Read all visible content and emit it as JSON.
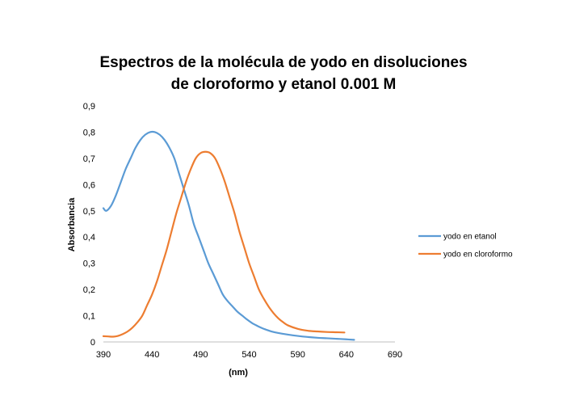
{
  "chart_data": {
    "type": "line",
    "title_line1": "Espectros de la molécula de yodo en disoluciones",
    "title_line2": "de cloroformo y etanol  0.001 M",
    "xlabel": "(nm)",
    "ylabel": "Absorbancia",
    "xlim": [
      390,
      690
    ],
    "ylim": [
      0,
      0.9
    ],
    "x_ticks": [
      390,
      440,
      490,
      540,
      590,
      640,
      690
    ],
    "y_ticks": [
      0,
      0.1,
      0.2,
      0.3,
      0.4,
      0.5,
      0.6,
      0.7,
      0.8,
      0.9
    ],
    "y_tick_labels": [
      "0",
      "0,1",
      "0,2",
      "0,3",
      "0,4",
      "0,5",
      "0,6",
      "0,7",
      "0,8",
      "0,9"
    ],
    "grid": false,
    "legend_position": "right",
    "series": [
      {
        "name": "yodo en etanol",
        "color": "#5B9BD5",
        "points": [
          [
            390,
            0.51
          ],
          [
            393,
            0.5
          ],
          [
            398,
            0.52
          ],
          [
            403,
            0.56
          ],
          [
            408,
            0.61
          ],
          [
            413,
            0.66
          ],
          [
            418,
            0.7
          ],
          [
            423,
            0.74
          ],
          [
            428,
            0.77
          ],
          [
            433,
            0.79
          ],
          [
            438,
            0.8
          ],
          [
            443,
            0.8
          ],
          [
            448,
            0.79
          ],
          [
            453,
            0.77
          ],
          [
            458,
            0.74
          ],
          [
            463,
            0.7
          ],
          [
            468,
            0.64
          ],
          [
            473,
            0.58
          ],
          [
            478,
            0.52
          ],
          [
            483,
            0.45
          ],
          [
            488,
            0.4
          ],
          [
            493,
            0.35
          ],
          [
            498,
            0.3
          ],
          [
            503,
            0.26
          ],
          [
            508,
            0.22
          ],
          [
            513,
            0.18
          ],
          [
            518,
            0.155
          ],
          [
            523,
            0.135
          ],
          [
            528,
            0.115
          ],
          [
            533,
            0.1
          ],
          [
            538,
            0.085
          ],
          [
            543,
            0.072
          ],
          [
            548,
            0.062
          ],
          [
            553,
            0.053
          ],
          [
            558,
            0.046
          ],
          [
            563,
            0.04
          ],
          [
            570,
            0.034
          ],
          [
            580,
            0.028
          ],
          [
            590,
            0.023
          ],
          [
            600,
            0.019
          ],
          [
            610,
            0.016
          ],
          [
            620,
            0.014
          ],
          [
            630,
            0.012
          ],
          [
            640,
            0.01
          ],
          [
            648,
            0.008
          ]
        ]
      },
      {
        "name": "yodo en cloroformo",
        "color": "#ED7D31",
        "points": [
          [
            390,
            0.022
          ],
          [
            395,
            0.021
          ],
          [
            400,
            0.02
          ],
          [
            405,
            0.023
          ],
          [
            410,
            0.03
          ],
          [
            415,
            0.04
          ],
          [
            420,
            0.055
          ],
          [
            425,
            0.075
          ],
          [
            430,
            0.1
          ],
          [
            435,
            0.14
          ],
          [
            440,
            0.18
          ],
          [
            445,
            0.23
          ],
          [
            450,
            0.29
          ],
          [
            455,
            0.35
          ],
          [
            460,
            0.42
          ],
          [
            465,
            0.49
          ],
          [
            470,
            0.55
          ],
          [
            475,
            0.61
          ],
          [
            480,
            0.66
          ],
          [
            485,
            0.7
          ],
          [
            490,
            0.72
          ],
          [
            495,
            0.725
          ],
          [
            500,
            0.72
          ],
          [
            505,
            0.7
          ],
          [
            510,
            0.66
          ],
          [
            515,
            0.61
          ],
          [
            520,
            0.55
          ],
          [
            525,
            0.49
          ],
          [
            530,
            0.42
          ],
          [
            535,
            0.36
          ],
          [
            540,
            0.3
          ],
          [
            545,
            0.25
          ],
          [
            550,
            0.2
          ],
          [
            555,
            0.165
          ],
          [
            560,
            0.135
          ],
          [
            565,
            0.11
          ],
          [
            570,
            0.09
          ],
          [
            575,
            0.075
          ],
          [
            580,
            0.063
          ],
          [
            590,
            0.05
          ],
          [
            600,
            0.043
          ],
          [
            610,
            0.04
          ],
          [
            620,
            0.038
          ],
          [
            630,
            0.037
          ],
          [
            638,
            0.036
          ]
        ]
      }
    ]
  }
}
